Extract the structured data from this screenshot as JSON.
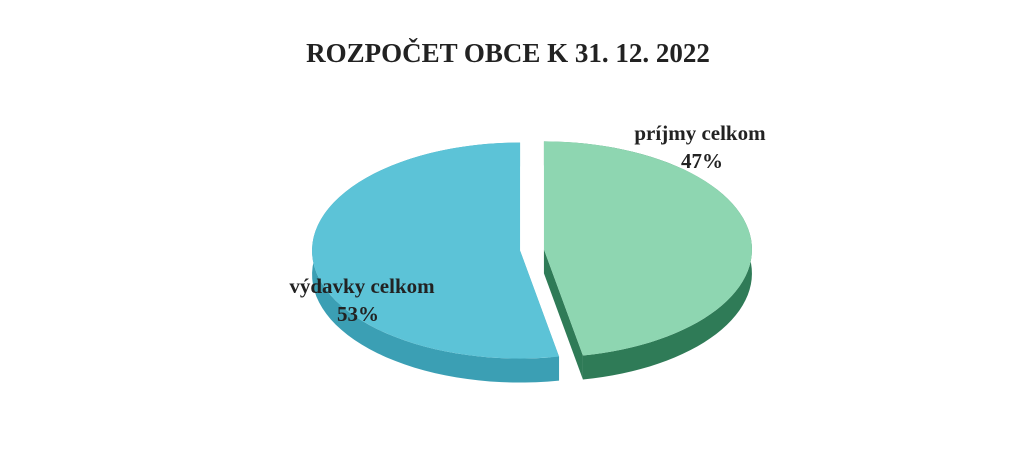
{
  "chart_data": {
    "type": "pie",
    "title": "ROZPOČET OBCE K 31. 12. 2022",
    "categories": [
      "príjmy celkom",
      "výdavky celkom"
    ],
    "values": [
      47,
      53
    ],
    "value_labels": [
      "47%",
      "53%"
    ],
    "colors": [
      "#8ed6b1",
      "#5cc3d7"
    ],
    "side_colors": [
      "#2f7b57",
      "#3b9fb4"
    ]
  }
}
